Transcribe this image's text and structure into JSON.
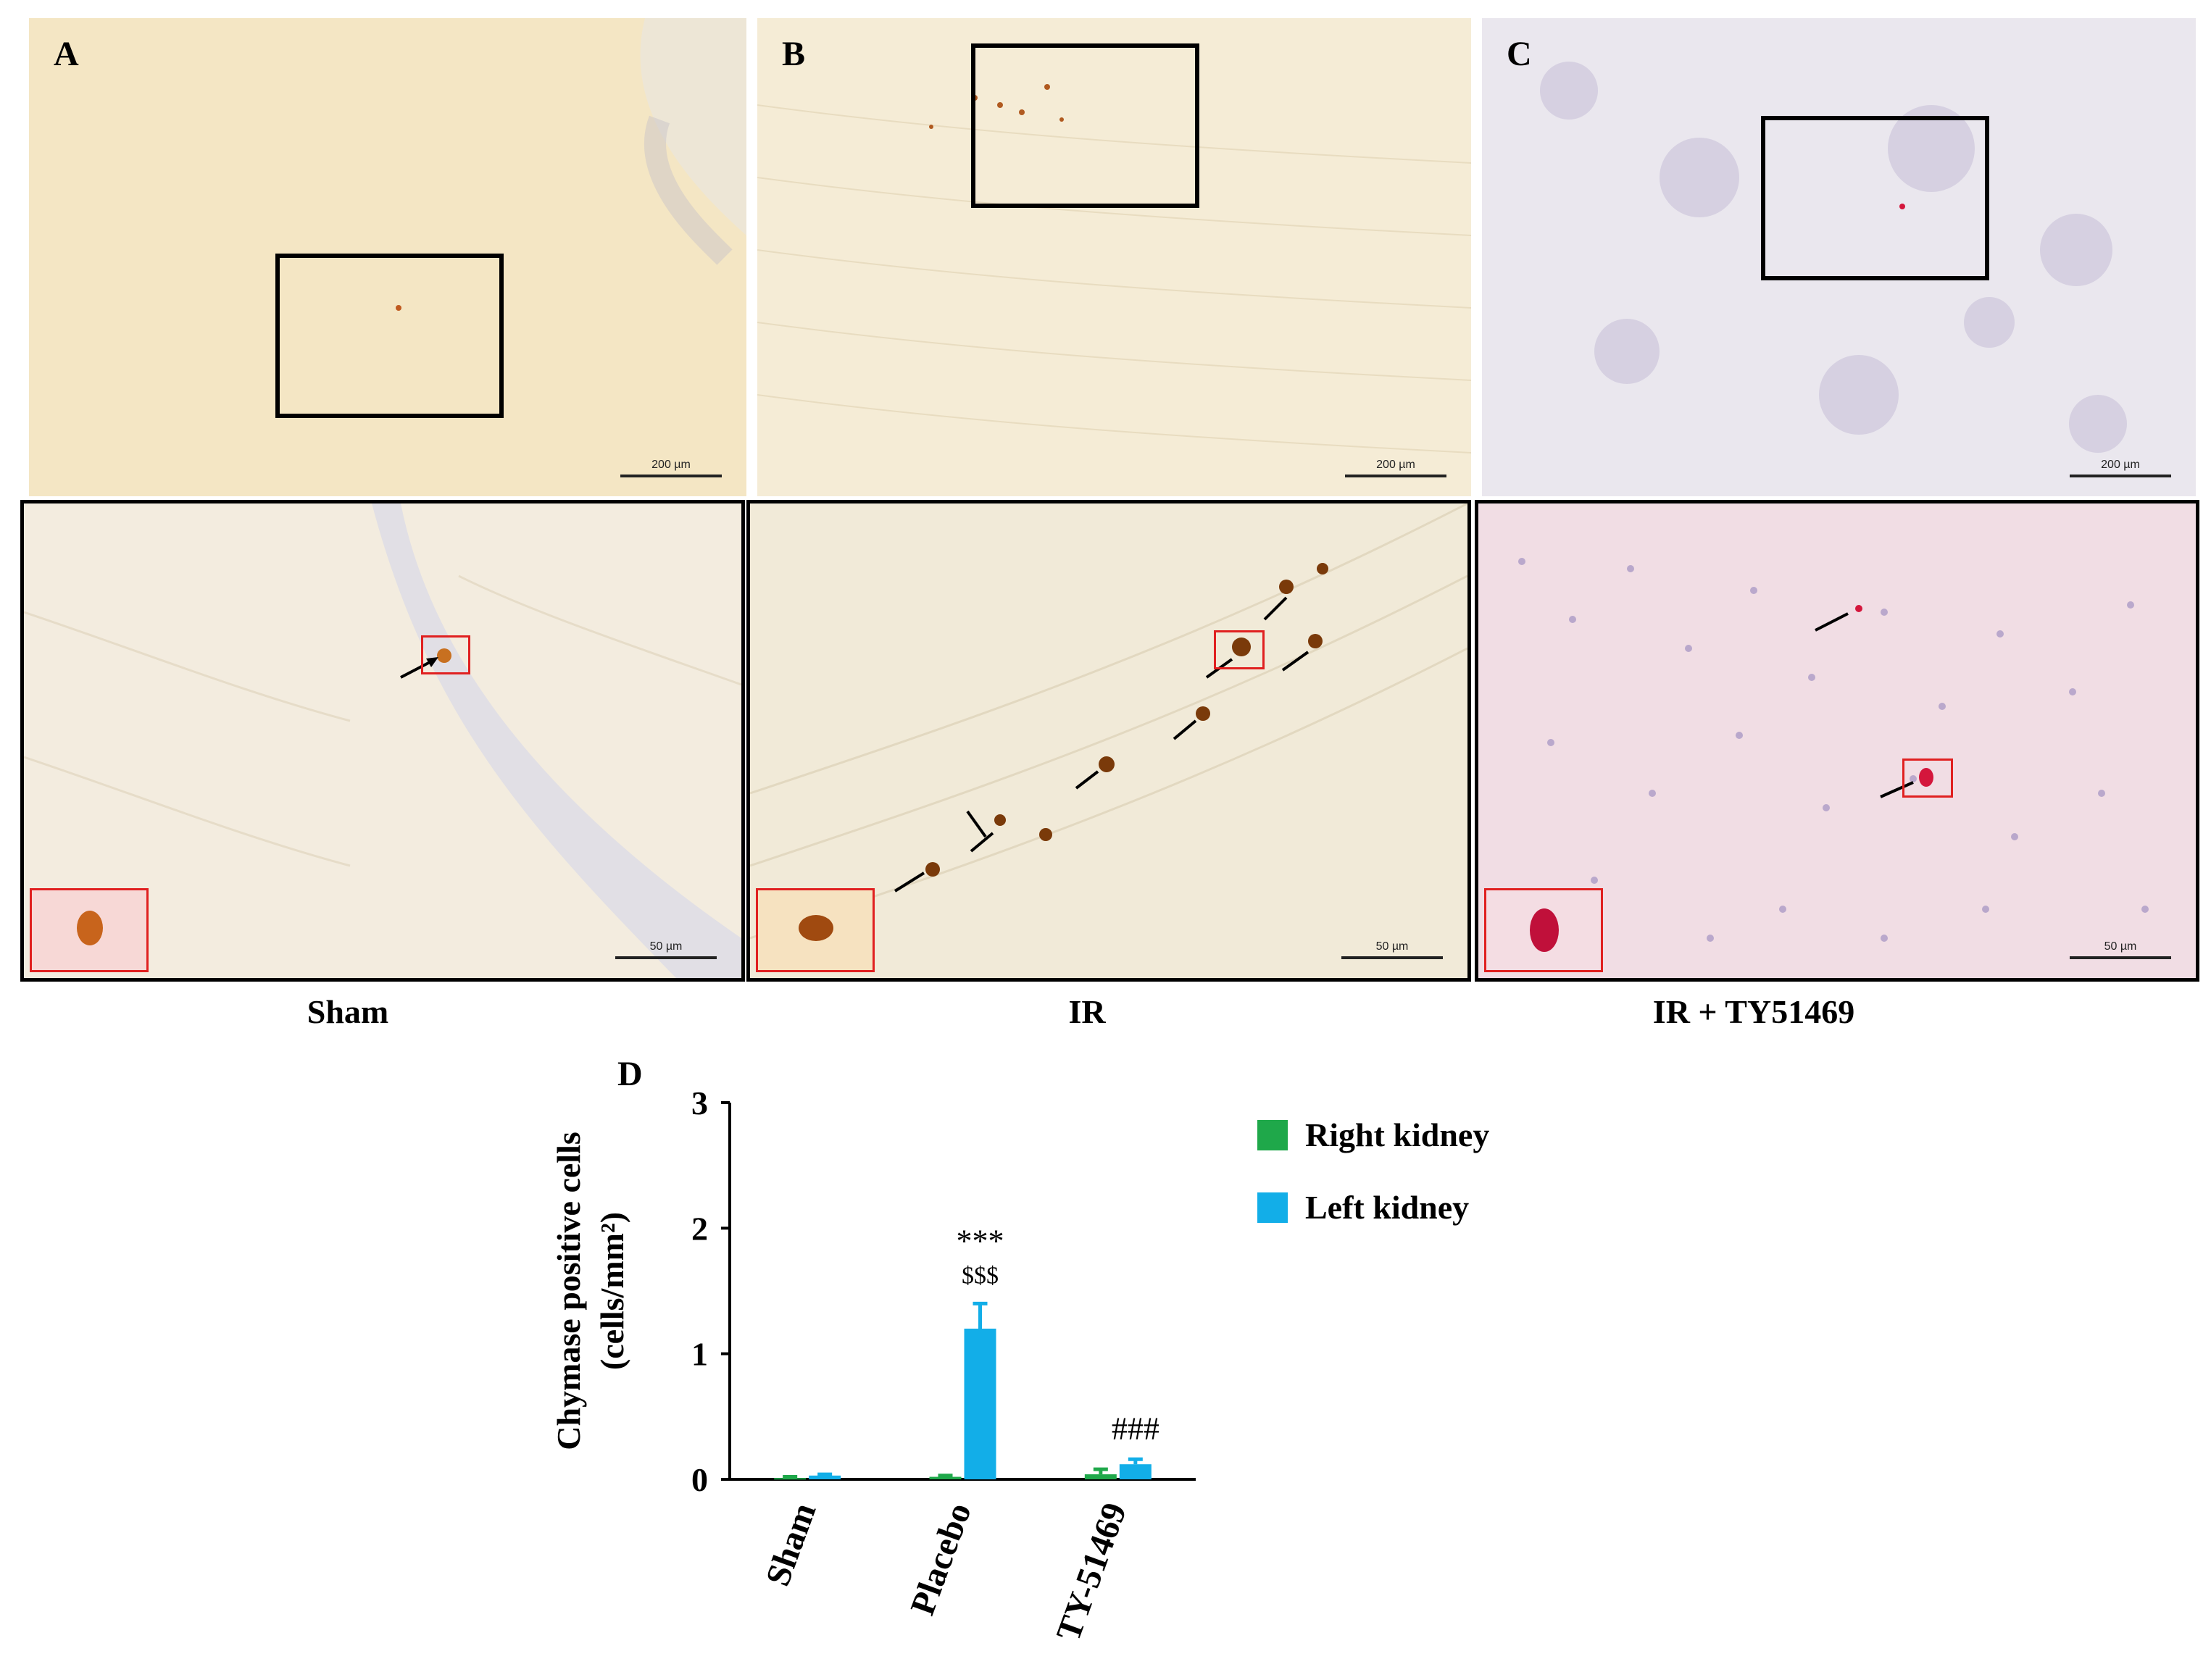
{
  "figure": {
    "panels": [
      {
        "letter": "A",
        "scale_top": "200 µm",
        "scale_bottom": "50 µm",
        "group": "Sham"
      },
      {
        "letter": "B",
        "scale_top": "200 µm",
        "scale_bottom": "50 µm",
        "group": "IR"
      },
      {
        "letter": "C",
        "scale_top": "200 µm",
        "scale_bottom": "50 µm",
        "group": "IR + TY51469"
      }
    ],
    "panel_d_letter": "D"
  },
  "colors": {
    "right_kidney": "#1fa84a",
    "left_kidney": "#12aee8",
    "tissue_a": "#f4e6c4",
    "tissue_b": "#f5ecd6",
    "tissue_c": "#eae7ee",
    "tissue_c_zoom": "#f1dde4",
    "stain_brown": "#a0521a",
    "stain_red": "#d4163c"
  },
  "chart_data": {
    "type": "bar",
    "title": "",
    "xlabel": "",
    "ylabel": "Chymase positive cells (cells/mm²)",
    "ylabel_line1": "Chymase positive cells",
    "ylabel_line2": "(cells/mm²)",
    "ylim": [
      0,
      3
    ],
    "yticks": [
      "0",
      "1",
      "2",
      "3"
    ],
    "categories": [
      "Sham",
      "Placebo",
      "TY-51469"
    ],
    "series": [
      {
        "name": "Right kidney",
        "values": [
          0.01,
          0.02,
          0.04
        ],
        "errors": [
          0.01,
          0.01,
          0.04
        ]
      },
      {
        "name": "Left kidney",
        "values": [
          0.03,
          1.2,
          0.12
        ],
        "errors": [
          0.01,
          0.2,
          0.04
        ]
      }
    ],
    "annotations": [
      {
        "category": "Placebo",
        "lines": [
          "***",
          "$$$"
        ]
      },
      {
        "category": "TY-51469",
        "lines": [
          "###"
        ]
      }
    ],
    "legend": "right",
    "grid": false
  }
}
